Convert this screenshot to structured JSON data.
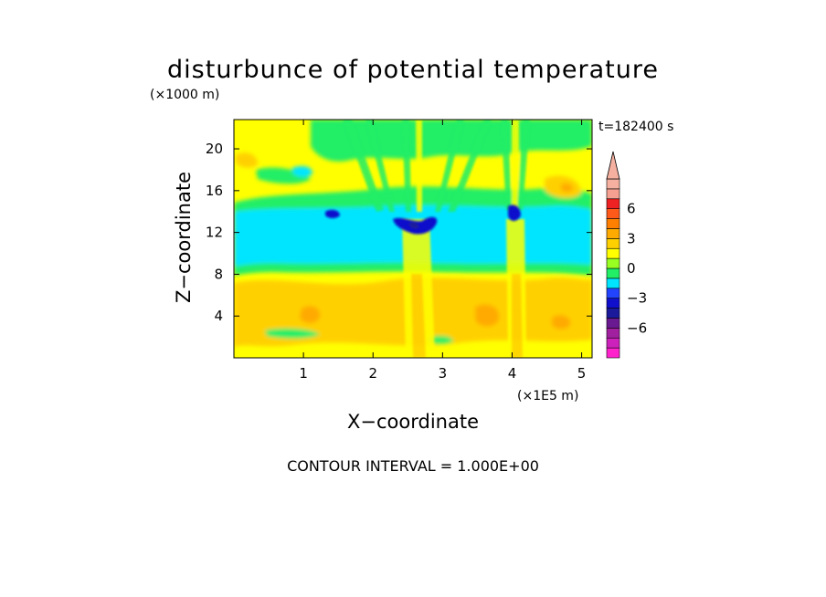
{
  "chart_data": {
    "type": "heatmap",
    "title": "disturbunce of potential temperature",
    "xlabel": "X−coordinate",
    "ylabel": "Z−coordinate",
    "x_unit": "(×1E5 m)",
    "y_unit": "(×1000 m)",
    "time_label": "t=182400 s",
    "footer": "CONTOUR INTERVAL = 1.000E+00",
    "xlim": [
      0,
      5.15
    ],
    "ylim": [
      0,
      22.8
    ],
    "x_ticks": [
      1,
      2,
      3,
      4,
      5
    ],
    "x_tick_labels": [
      "1",
      "2",
      "3",
      "4",
      "5"
    ],
    "y_ticks": [
      4,
      8,
      12,
      16,
      20
    ],
    "y_tick_labels": [
      "4",
      "8",
      "12",
      "16",
      "20"
    ],
    "colorbar": {
      "levels": [
        -9,
        -8,
        -7,
        -6,
        -5,
        -4,
        -3,
        -2,
        -1,
        0,
        1,
        2,
        3,
        4,
        5,
        6,
        7,
        8,
        9
      ],
      "tick_values": [
        6,
        3,
        0,
        -3,
        -6
      ],
      "tick_labels": [
        "6",
        "3",
        "0",
        "−3",
        "−6"
      ],
      "colors": [
        "#ff22cc",
        "#cc22bb",
        "#a020a0",
        "#6a1a90",
        "#1a1a9a",
        "#1010cc",
        "#2244ff",
        "#00e5ff",
        "#22ee66",
        "#99ff22",
        "#ffff00",
        "#ffd000",
        "#ffaa00",
        "#ff7f00",
        "#ff5a1a",
        "#ee2222",
        "#f5a090",
        "#f5b0a0"
      ],
      "extend": "max"
    },
    "field_description_levels": {
      "background": 0,
      "cool_band_z_range": [
        9,
        14
      ],
      "cool_band_value": -2,
      "warm_band_z_range": [
        1,
        7
      ],
      "warm_band_value": 1
    }
  }
}
